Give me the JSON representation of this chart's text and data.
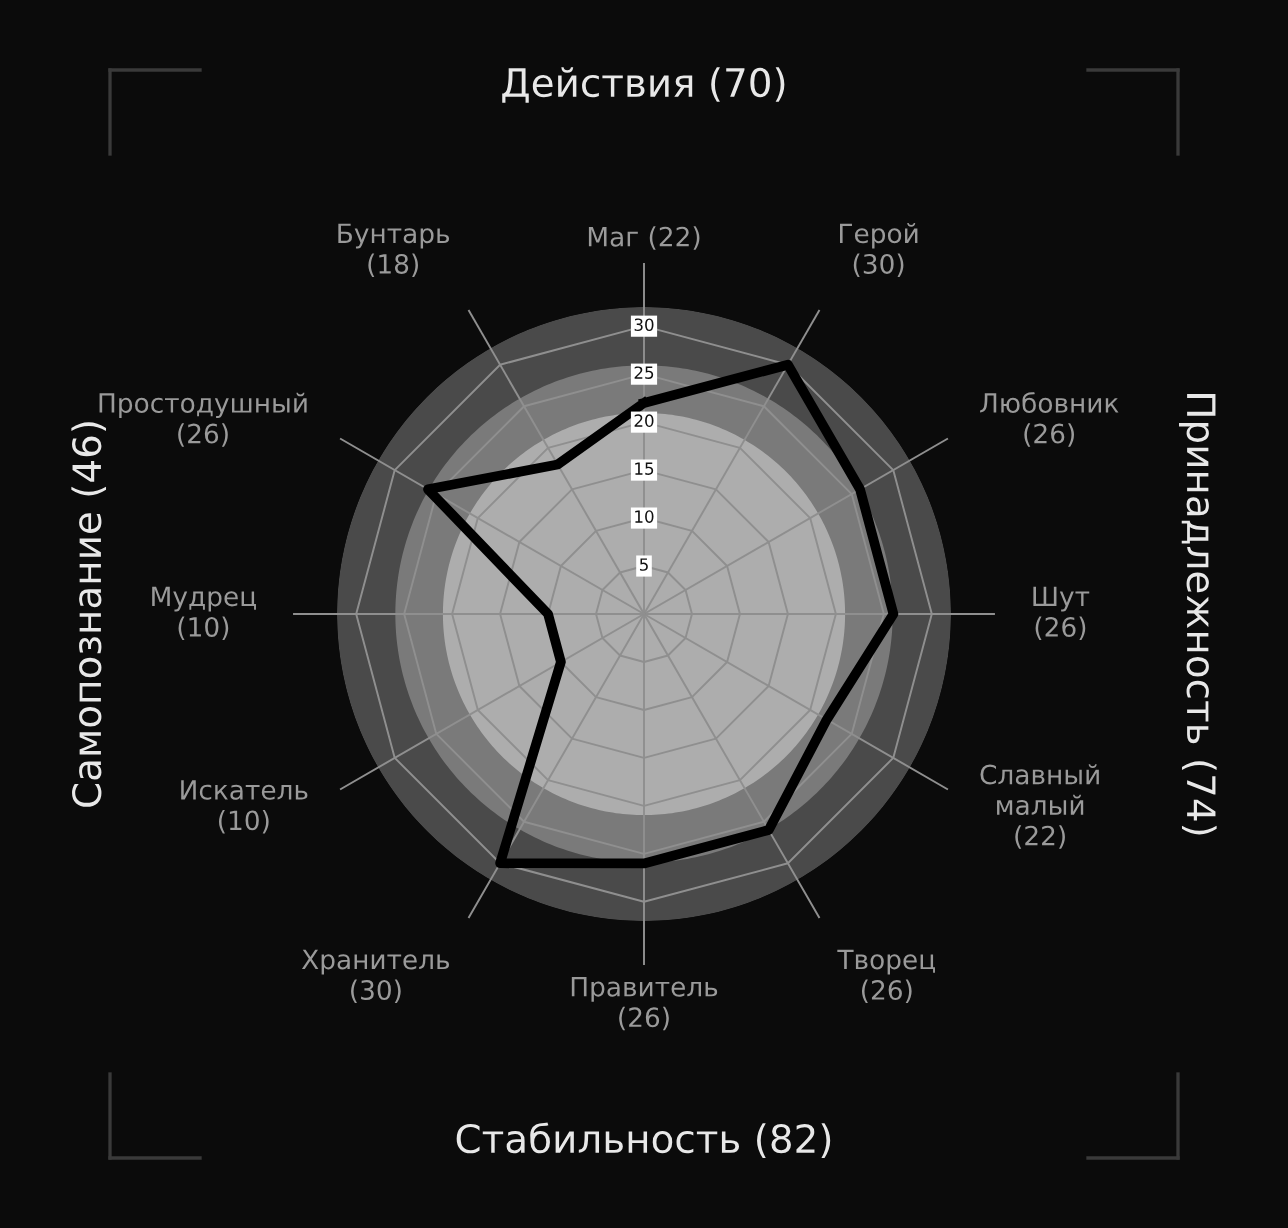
{
  "chart_data": {
    "type": "radar",
    "categories": [
      "Маг (22)",
      "Герой\n(30)",
      "Любовник\n(26)",
      "Шут\n(26)",
      "Славный\nмалый\n(22)",
      "Творец\n(26)",
      "Правитель\n(26)",
      "Хранитель\n(30)",
      "Искатель\n(10)",
      "Мудрец\n(10)",
      "Простодушный\n(26)",
      "Бунтарь\n(18)"
    ],
    "series": [
      {
        "color": "#000000",
        "values": [
          22,
          30,
          26,
          26,
          22,
          26,
          26,
          30,
          10,
          10,
          26,
          18
        ]
      }
    ],
    "ylim": [
      0,
      32
    ],
    "yticks": [
      5,
      10,
      15,
      20,
      25,
      30
    ],
    "grid": true,
    "marker": "none",
    "line_style": "solid",
    "annotations": [
      "Действия (70)",
      "Принадлежность (74)",
      "Стабильность (82)",
      "Самопознание (46)"
    ]
  }
}
